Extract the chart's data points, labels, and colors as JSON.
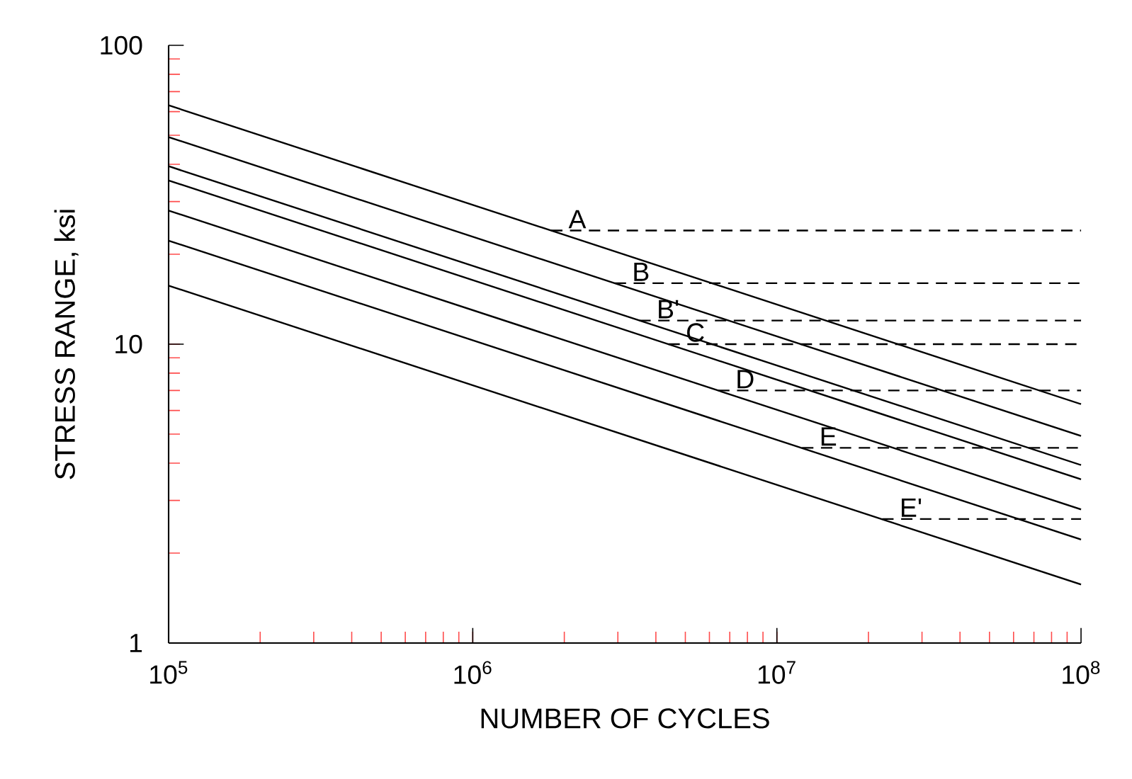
{
  "chart_data": {
    "type": "line",
    "xlabel": "NUMBER OF CYCLES",
    "ylabel": "STRESS RANGE, ksi",
    "log": "xy",
    "grid": false,
    "marker": "none",
    "xlim": [
      100000,
      100000000
    ],
    "ylim": [
      1,
      100
    ],
    "xticks": [
      {
        "value": 100000,
        "label": "10$^{5}$"
      },
      {
        "value": 1000000,
        "label": "10$^{6}$"
      },
      {
        "value": 10000000,
        "label": "10$^{7}$"
      },
      {
        "value": 100000000,
        "label": "10$^{8}$"
      }
    ],
    "yticks": [
      1,
      10,
      100
    ],
    "series": [
      {
        "color": "#000000",
        "line_style": "solid",
        "x": [
          100000,
          100000000
        ],
        "values": [
          63,
          6.3
        ]
      },
      {
        "color": "#000000",
        "line_style": "solid",
        "x": [
          100000,
          100000000
        ],
        "values": [
          49.3,
          4.93
        ]
      },
      {
        "color": "#000000",
        "line_style": "solid",
        "x": [
          100000,
          100000000
        ],
        "values": [
          39.4,
          3.94
        ]
      },
      {
        "color": "#000000",
        "line_style": "solid",
        "x": [
          100000,
          100000000
        ],
        "values": [
          35.3,
          3.53
        ]
      },
      {
        "color": "#000000",
        "line_style": "solid",
        "x": [
          100000,
          100000000
        ],
        "values": [
          28,
          2.8
        ]
      },
      {
        "color": "#000000",
        "line_style": "solid",
        "x": [
          100000,
          100000000
        ],
        "values": [
          22.2,
          2.22
        ]
      },
      {
        "color": "#000000",
        "line_style": "solid",
        "x": [
          100000,
          100000000
        ],
        "values": [
          15.7,
          1.57
        ]
      },
      {
        "color": "#000000",
        "line_style": "dashed",
        "x": [
          1810000,
          100000000
        ],
        "values": [
          24,
          24
        ]
      },
      {
        "color": "#000000",
        "line_style": "dashed",
        "x": [
          2930000,
          100000000
        ],
        "values": [
          16,
          16
        ]
      },
      {
        "color": "#000000",
        "line_style": "dashed",
        "x": [
          3530000,
          100000000
        ],
        "values": [
          12,
          12
        ]
      },
      {
        "color": "#000000",
        "line_style": "dashed",
        "x": [
          4400000,
          100000000
        ],
        "values": [
          10,
          10
        ]
      },
      {
        "color": "#000000",
        "line_style": "dashed",
        "x": [
          6410000,
          100000000
        ],
        "values": [
          7,
          7
        ]
      },
      {
        "color": "#000000",
        "line_style": "dashed",
        "x": [
          12100000,
          100000000
        ],
        "values": [
          4.5,
          4.5
        ]
      },
      {
        "color": "#000000",
        "line_style": "dashed",
        "x": [
          22200000,
          100000000
        ],
        "values": [
          2.6,
          2.6
        ]
      }
    ],
    "annotations": [
      {
        "text": "A",
        "x": 1810000,
        "y": 24
      },
      {
        "text": "B",
        "x": 2930000,
        "y": 16
      },
      {
        "text": "B'",
        "x": 3530000,
        "y": 12
      },
      {
        "text": "C",
        "x": 4400000,
        "y": 10
      },
      {
        "text": "D",
        "x": 6410000,
        "y": 7
      },
      {
        "text": "E",
        "x": 12100000,
        "y": 4.5
      },
      {
        "text": "E'",
        "x": 22200000,
        "y": 2.6
      }
    ]
  }
}
